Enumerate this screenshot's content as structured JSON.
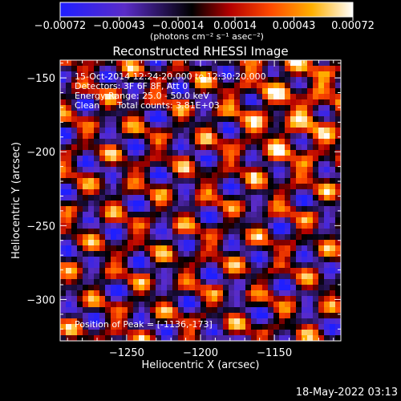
{
  "chart_data": {
    "type": "heatmap",
    "title": "Reconstructed RHESSI Image",
    "xlabel": "Heliocentric X (arcsec)",
    "ylabel": "Heliocentric Y (arcsec)",
    "xlim": [
      -1295,
      -1105
    ],
    "ylim": [
      -328,
      -138
    ],
    "x_ticks": [
      -1250,
      -1200,
      -1150
    ],
    "x_tick_labels": [
      "−1250",
      "−1200",
      "−1150"
    ],
    "y_ticks": [
      -150,
      -200,
      -250,
      -300
    ],
    "y_tick_labels": [
      "−150",
      "−200",
      "−250",
      "−300"
    ],
    "grid": false,
    "colorbar": {
      "position": "top",
      "range": [
        -0.00072,
        0.00072
      ],
      "ticks": [
        -0.00072,
        -0.00043,
        -0.00014,
        0.00014,
        0.00043,
        0.00072
      ],
      "tick_labels": [
        "−0.00072",
        "−0.00043",
        "−0.00014",
        "0.00014",
        "0.00043",
        "0.00072"
      ],
      "units": "(photons cm⁻² s⁻¹ asec⁻²)"
    },
    "annotations": {
      "time": "15-Oct-2014 12:24:20.000 to 12:30:20.000",
      "detectors": "Detectors: 3F 6F 8F, Att 0",
      "energy": "Energy Range: 25.0 - 50.0 keV",
      "clean": "Clean",
      "counts": "Total counts: 3.81E+03",
      "peak": "Position of Peak = [-1136,-173]"
    },
    "peak_position": [
      -1136,
      -173
    ],
    "colors": {
      "background": "#000000",
      "axes": "#ffffff"
    }
  },
  "footer": {
    "timestamp": "18-May-2022 03:13"
  }
}
